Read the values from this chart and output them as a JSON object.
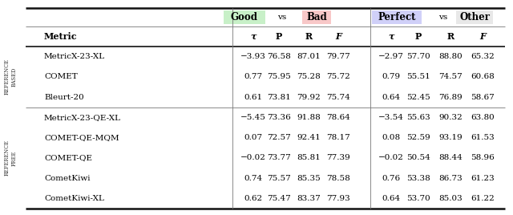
{
  "col_headers": [
    "τ",
    "P",
    "R",
    "F",
    "τ",
    "P",
    "R",
    "F"
  ],
  "metric_col_header": "Metric",
  "side_label_top": "REFERENCE\nBASED",
  "side_label_bottom": "REFERENCE\nFREE",
  "good_highlight": "#c8f0c8",
  "bad_highlight": "#f8c8c8",
  "perfect_highlight": "#d0d0f8",
  "other_highlight": "#e8e8e8",
  "rows": [
    {
      "metric": "MetricX-23-XL",
      "vals": [
        "−3.93",
        "76.58",
        "87.01",
        "79.77",
        "−2.97",
        "57.70",
        "88.80",
        "65.32"
      ],
      "group": "ref_based"
    },
    {
      "metric": "COMET",
      "vals": [
        "0.77",
        "75.95",
        "75.28",
        "75.72",
        "0.79",
        "55.51",
        "74.57",
        "60.68"
      ],
      "group": "ref_based"
    },
    {
      "metric": "Bleurt-20",
      "vals": [
        "0.61",
        "73.81",
        "79.92",
        "75.74",
        "0.64",
        "52.45",
        "76.89",
        "58.67"
      ],
      "group": "ref_based"
    },
    {
      "metric": "MetricX-23-QE-XL",
      "vals": [
        "−5.45",
        "73.36",
        "91.88",
        "78.64",
        "−3.54",
        "55.63",
        "90.32",
        "63.80"
      ],
      "group": "ref_free"
    },
    {
      "metric": "COMET-QE-MQM",
      "vals": [
        "0.07",
        "72.57",
        "92.41",
        "78.17",
        "0.08",
        "52.59",
        "93.19",
        "61.53"
      ],
      "group": "ref_free"
    },
    {
      "metric": "COMET-QE",
      "vals": [
        "−0.02",
        "73.77",
        "85.81",
        "77.39",
        "−0.02",
        "50.54",
        "88.44",
        "58.96"
      ],
      "group": "ref_free"
    },
    {
      "metric": "CometKiwi",
      "vals": [
        "0.74",
        "75.57",
        "85.35",
        "78.58",
        "0.76",
        "53.38",
        "86.73",
        "61.23"
      ],
      "group": "ref_free"
    },
    {
      "metric": "CometKiwi-XL",
      "vals": [
        "0.62",
        "75.47",
        "83.37",
        "77.93",
        "0.64",
        "53.70",
        "85.03",
        "61.22"
      ],
      "group": "ref_free"
    }
  ]
}
